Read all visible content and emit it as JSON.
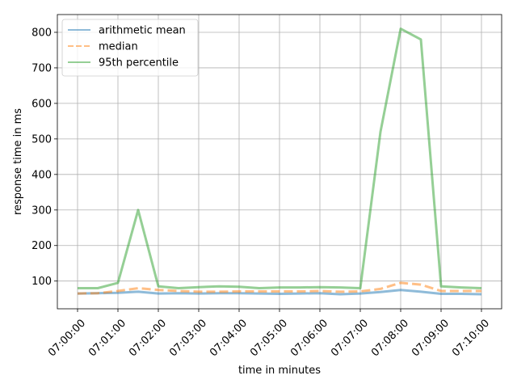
{
  "chart_data": {
    "type": "line",
    "xlabel": "time in minutes",
    "ylabel": "response time in ms",
    "x": [
      "07:00:00",
      "07:00:30",
      "07:01:00",
      "07:01:30",
      "07:02:00",
      "07:02:30",
      "07:03:00",
      "07:03:30",
      "07:04:00",
      "07:04:30",
      "07:05:00",
      "07:05:30",
      "07:06:00",
      "07:06:30",
      "07:07:00",
      "07:07:30",
      "07:08:00",
      "07:08:30",
      "07:09:00",
      "07:09:30",
      "07:10:00"
    ],
    "x_ticks": [
      "07:00:00",
      "07:01:00",
      "07:02:00",
      "07:03:00",
      "07:04:00",
      "07:05:00",
      "07:06:00",
      "07:07:00",
      "07:08:00",
      "07:09:00",
      "07:10:00"
    ],
    "y_ticks": [
      100,
      200,
      300,
      400,
      500,
      600,
      700,
      800
    ],
    "ylim": [
      22,
      850
    ],
    "grid": true,
    "legend_position": "top-left",
    "series": [
      {
        "name": "arithmetic mean",
        "color": "#1f77b4",
        "style": "solid",
        "values": [
          65,
          66,
          67,
          70,
          65,
          66,
          65,
          66,
          66,
          65,
          64,
          65,
          66,
          63,
          65,
          69,
          75,
          70,
          64,
          64,
          63
        ]
      },
      {
        "name": "median",
        "color": "#ff7f0e",
        "style": "dashed",
        "values": [
          65,
          66,
          72,
          80,
          75,
          72,
          70,
          70,
          71,
          71,
          71,
          71,
          72,
          70,
          71,
          78,
          95,
          90,
          72,
          72,
          72
        ]
      },
      {
        "name": "95th percentile",
        "color": "#2ca02c",
        "style": "solid",
        "values": [
          80,
          80,
          95,
          300,
          85,
          80,
          83,
          85,
          84,
          80,
          82,
          82,
          83,
          82,
          80,
          520,
          810,
          780,
          85,
          82,
          80
        ]
      }
    ]
  }
}
